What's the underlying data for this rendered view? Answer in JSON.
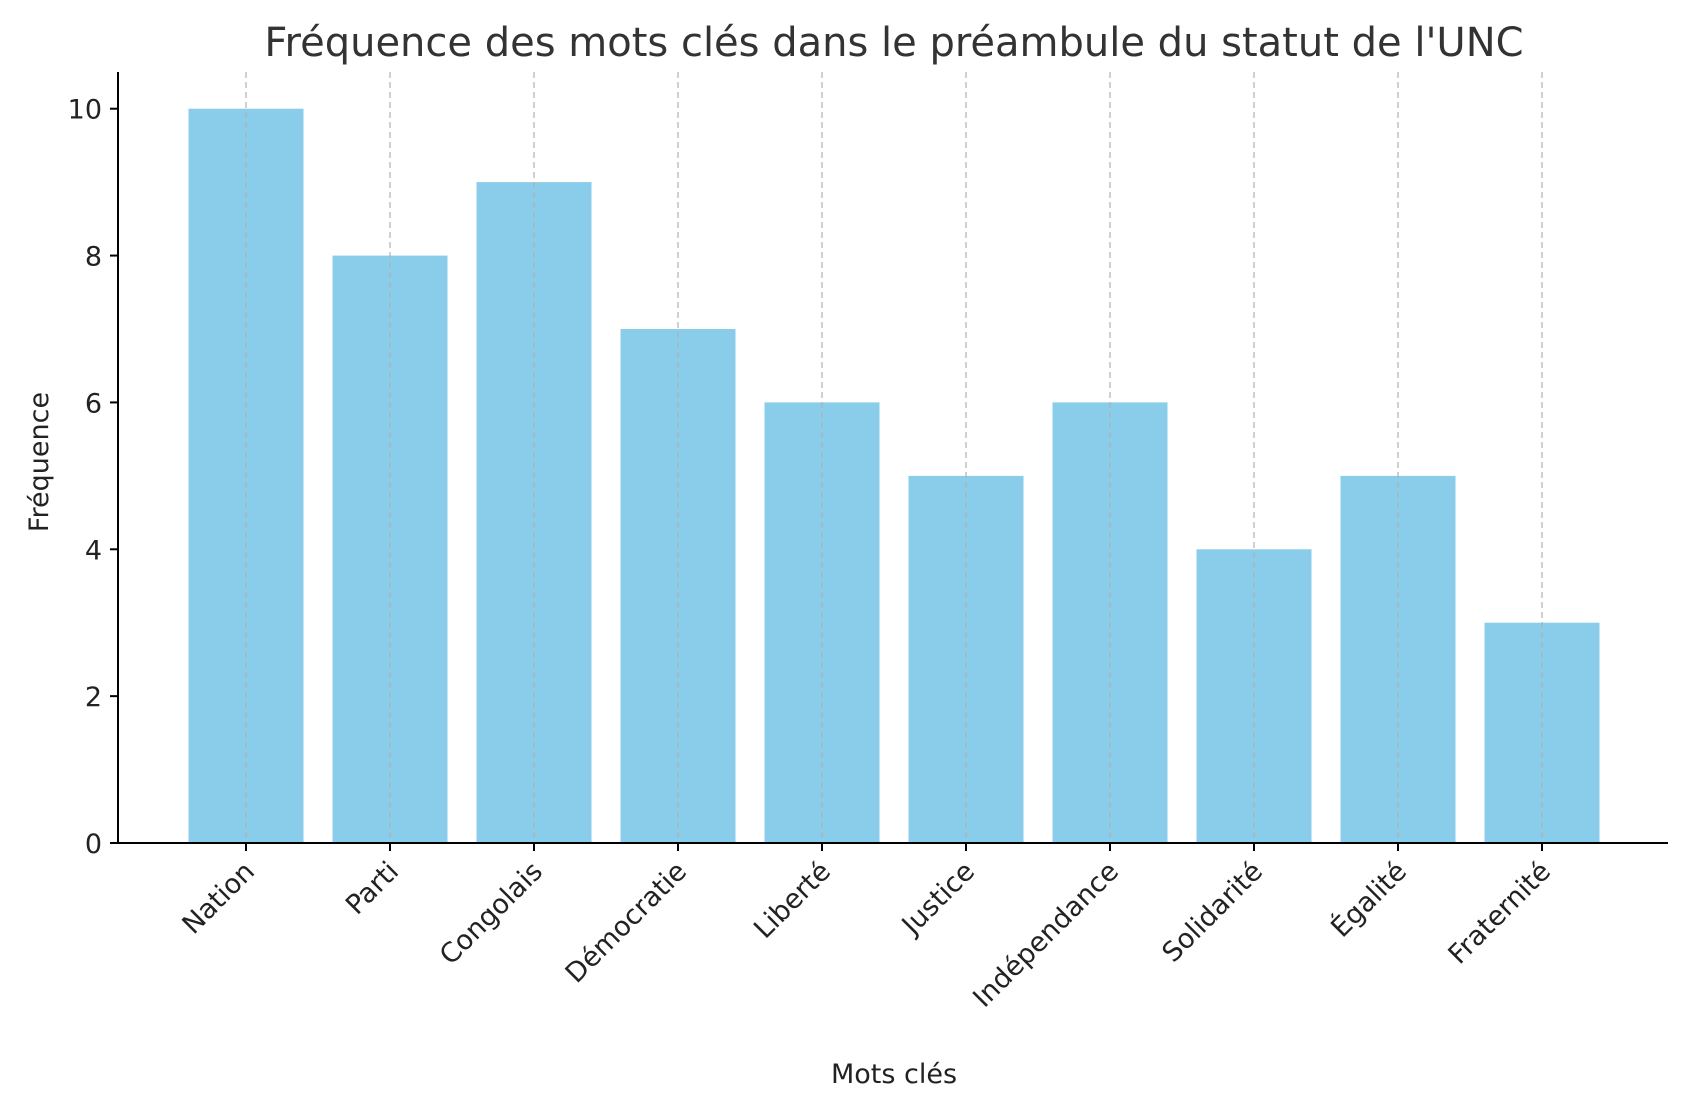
{
  "chart_data": {
    "type": "bar",
    "title": "Fréquence des mots clés dans le préambule du statut de l'UNC",
    "xlabel": "Mots clés",
    "ylabel": "Fréquence",
    "categories": [
      "Nation",
      "Parti",
      "Congolais",
      "Démocratie",
      "Liberté",
      "Justice",
      "Indépendance",
      "Solidarité",
      "Égalité",
      "Fraternité"
    ],
    "values": [
      10,
      8,
      9,
      7,
      6,
      5,
      6,
      4,
      5,
      3
    ],
    "ylim": [
      0,
      10.5
    ],
    "yticks": [
      0,
      2,
      4,
      6,
      8,
      10
    ],
    "grid": "vertical dashed",
    "bar_color": "#89CDEA"
  }
}
